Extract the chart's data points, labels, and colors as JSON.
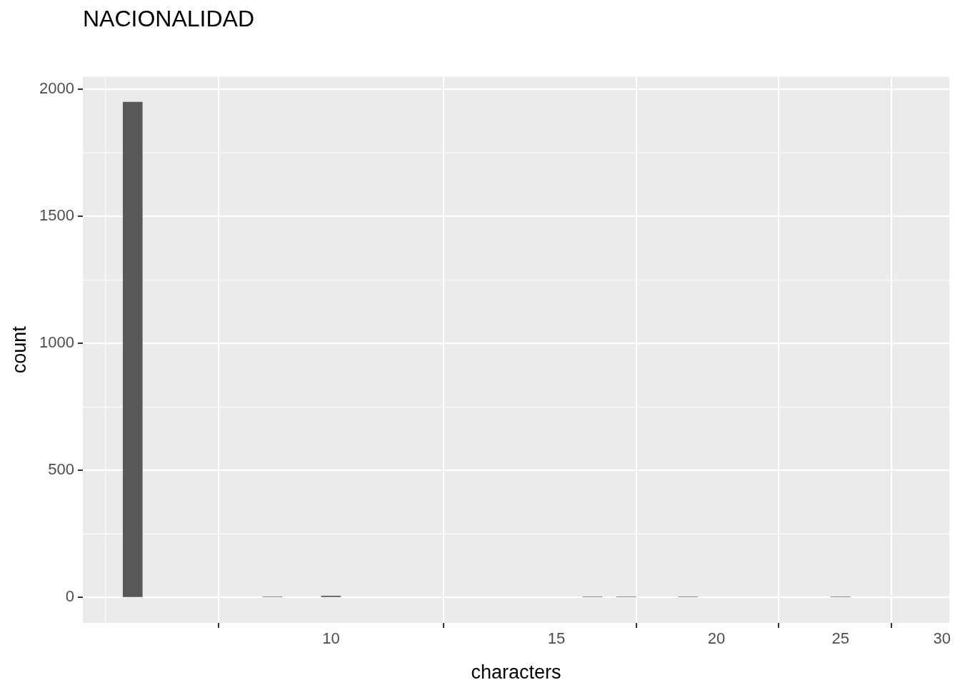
{
  "chart_data": {
    "type": "bar",
    "title": "NACIONALIDAD",
    "xlabel": "characters",
    "ylabel": "count",
    "x": [
      7,
      9,
      10,
      16,
      17,
      19,
      25
    ],
    "values": [
      1950,
      3,
      6,
      3,
      3,
      3,
      3
    ],
    "color": "#595959",
    "log": "x",
    "xlim": [
      6.4,
      30.4
    ],
    "xticks": [
      10,
      15,
      20,
      25,
      30
    ],
    "ylim": [
      -100,
      2050
    ],
    "yticks": [
      0,
      500,
      1000,
      1500,
      2000
    ],
    "grid": true
  }
}
